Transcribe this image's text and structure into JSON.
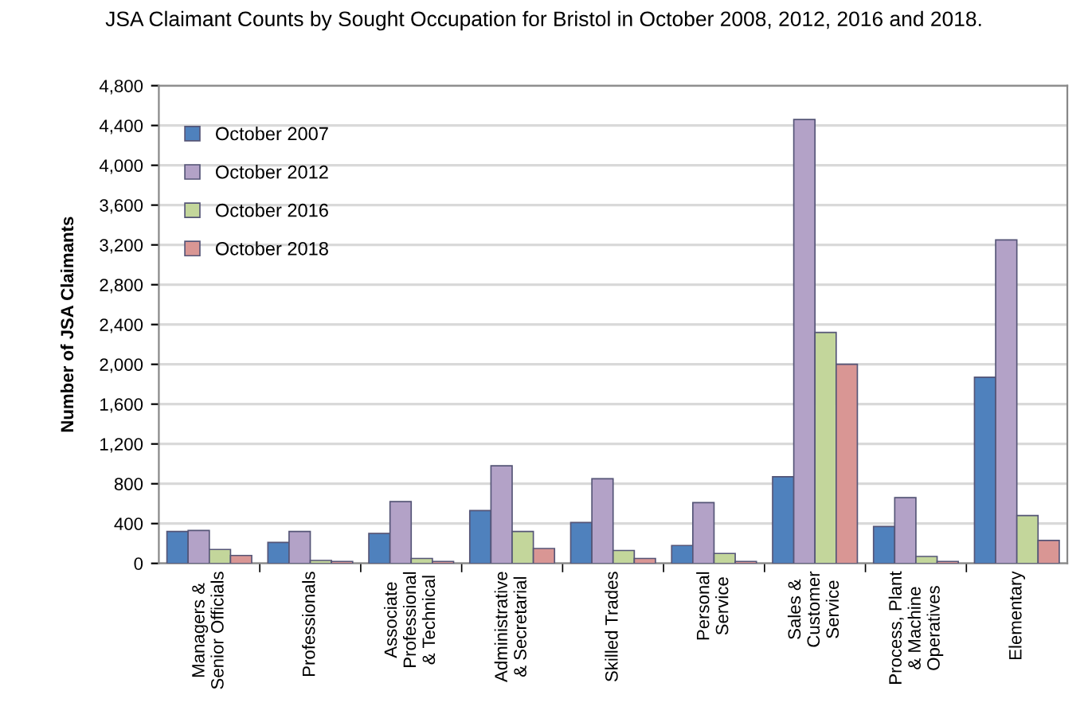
{
  "chart_data": {
    "type": "bar",
    "title": "JSA Claimant Counts by Sought Occupation for Bristol in October 2008, 2012, 2016 and 2018.",
    "ylabel": "Number of JSA Claimants",
    "categories": [
      "Managers &\nSenior Officials",
      "Professionals",
      "Associate\nProfessional\n& Technical",
      "Administrative\n& Secretarial",
      "Skilled Trades",
      "Personal\nService",
      "Sales &\nCustomer\nService",
      "Process, Plant\n& Machine\nOperatives",
      "Elementary"
    ],
    "series": [
      {
        "name": "October 2007",
        "color": "#4f81bd",
        "values": [
          320,
          210,
          300,
          530,
          410,
          180,
          870,
          370,
          1870
        ]
      },
      {
        "name": "October 2012",
        "color": "#b3a2c7",
        "values": [
          330,
          320,
          620,
          980,
          850,
          610,
          4460,
          660,
          3250
        ]
      },
      {
        "name": "October 2016",
        "color": "#c3d69b",
        "values": [
          140,
          30,
          50,
          320,
          130,
          100,
          2320,
          70,
          480
        ]
      },
      {
        "name": "October 2018",
        "color": "#d99694",
        "values": [
          80,
          20,
          20,
          150,
          50,
          20,
          2000,
          20,
          230
        ]
      }
    ],
    "ylim": [
      0,
      4800
    ],
    "yticks": [
      {
        "value": 0,
        "label": "0"
      },
      {
        "value": 400,
        "label": "400"
      },
      {
        "value": 800,
        "label": "800"
      },
      {
        "value": 1200,
        "label": "1,200"
      },
      {
        "value": 1600,
        "label": "1,600"
      },
      {
        "value": 2000,
        "label": "2,000"
      },
      {
        "value": 2400,
        "label": "2,400"
      },
      {
        "value": 2800,
        "label": "2,800"
      },
      {
        "value": 3200,
        "label": "3,200"
      },
      {
        "value": 3600,
        "label": "3,600"
      },
      {
        "value": 4000,
        "label": "4,000"
      },
      {
        "value": 4400,
        "label": "4,400"
      },
      {
        "value": 4800,
        "label": "4,800"
      }
    ],
    "grid": "y",
    "legend": "top left"
  }
}
